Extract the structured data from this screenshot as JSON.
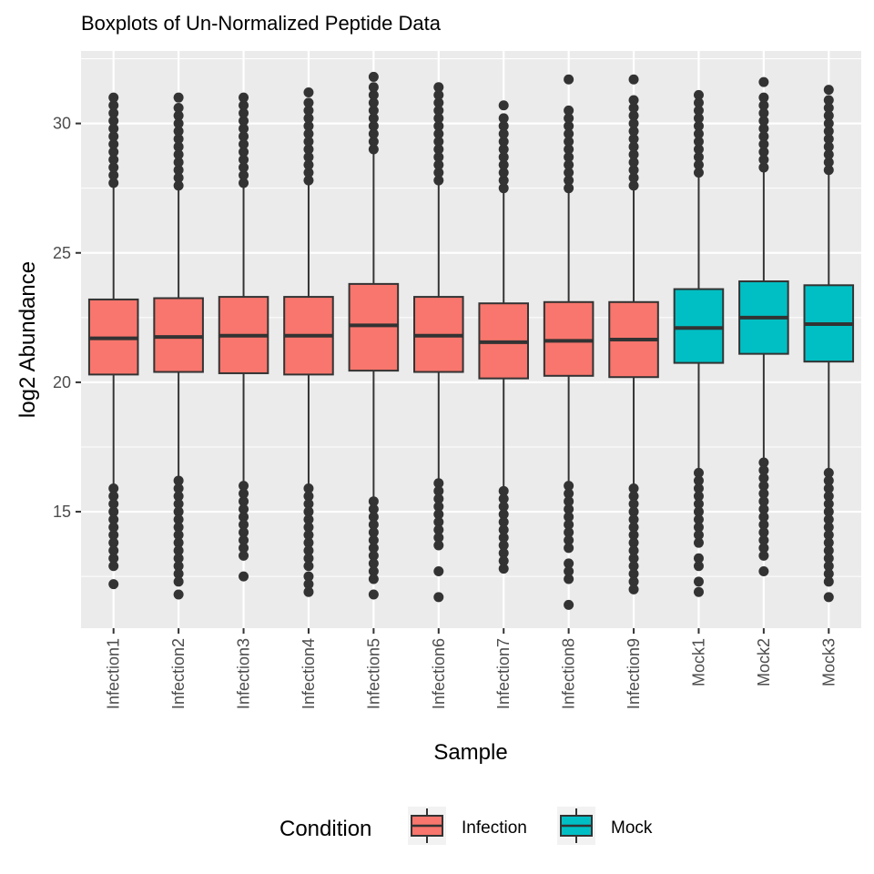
{
  "chart_data": {
    "type": "box",
    "title": "Boxplots of Un-Normalized Peptide Data",
    "xlabel": "Sample",
    "ylabel": "log2 Abundance",
    "ylim": [
      10.5,
      32.8
    ],
    "yticks": [
      15,
      20,
      25,
      30
    ],
    "grid": true,
    "legend": {
      "title": "Condition",
      "position": "bottom",
      "entries": [
        {
          "label": "Infection",
          "color": "#F8766D"
        },
        {
          "label": "Mock",
          "color": "#00BFC4"
        }
      ]
    },
    "colors": {
      "Infection": "#F8766D",
      "Mock": "#00BFC4",
      "panel": "#EBEBEB",
      "grid": "#FFFFFF",
      "outline": "#333333"
    },
    "categories": [
      "Infection1",
      "Infection2",
      "Infection3",
      "Infection4",
      "Infection5",
      "Infection6",
      "Infection7",
      "Infection8",
      "Infection9",
      "Mock1",
      "Mock2",
      "Mock3"
    ],
    "series": [
      {
        "sample": "Infection1",
        "condition": "Infection",
        "min": 15.9,
        "q1": 20.3,
        "median": 21.7,
        "q3": 23.2,
        "max": 27.6,
        "outliers_low": [
          15.9,
          15.6,
          15.3,
          15.0,
          14.7,
          14.4,
          14.1,
          13.8,
          13.5,
          13.2,
          12.9,
          12.2
        ],
        "outliers_high": [
          27.7,
          28.0,
          28.3,
          28.6,
          28.9,
          29.2,
          29.5,
          29.8,
          30.1,
          30.4,
          30.7,
          31.0
        ]
      },
      {
        "sample": "Infection2",
        "condition": "Infection",
        "min": 16.2,
        "q1": 20.4,
        "median": 21.75,
        "q3": 23.25,
        "max": 27.5,
        "outliers_low": [
          16.2,
          15.9,
          15.6,
          15.3,
          15.0,
          14.7,
          14.4,
          14.1,
          13.8,
          13.5,
          13.2,
          12.9,
          12.6,
          12.3,
          11.8
        ],
        "outliers_high": [
          27.6,
          27.9,
          28.2,
          28.5,
          28.8,
          29.1,
          29.4,
          29.7,
          30.0,
          30.3,
          30.6,
          31.0
        ]
      },
      {
        "sample": "Infection3",
        "condition": "Infection",
        "min": 16.0,
        "q1": 20.35,
        "median": 21.8,
        "q3": 23.3,
        "max": 27.6,
        "outliers_low": [
          16.0,
          15.7,
          15.4,
          15.1,
          14.8,
          14.5,
          14.2,
          13.9,
          13.6,
          13.3,
          12.5
        ],
        "outliers_high": [
          27.7,
          28.0,
          28.3,
          28.6,
          28.9,
          29.2,
          29.5,
          29.8,
          30.1,
          30.4,
          30.7,
          31.0
        ]
      },
      {
        "sample": "Infection4",
        "condition": "Infection",
        "min": 15.9,
        "q1": 20.3,
        "median": 21.8,
        "q3": 23.3,
        "max": 27.8,
        "outliers_low": [
          15.9,
          15.6,
          15.3,
          15.0,
          14.7,
          14.4,
          14.1,
          13.8,
          13.5,
          13.2,
          12.9,
          12.5,
          12.2,
          11.9
        ],
        "outliers_high": [
          27.8,
          28.1,
          28.4,
          28.7,
          29.0,
          29.3,
          29.6,
          29.9,
          30.2,
          30.5,
          30.8,
          31.2
        ]
      },
      {
        "sample": "Infection5",
        "condition": "Infection",
        "min": 15.4,
        "q1": 20.45,
        "median": 22.2,
        "q3": 23.8,
        "max": 28.9,
        "outliers_low": [
          15.4,
          15.1,
          14.8,
          14.5,
          14.2,
          13.9,
          13.6,
          13.3,
          13.0,
          12.7,
          12.4,
          11.8
        ],
        "outliers_high": [
          29.0,
          29.3,
          29.6,
          29.9,
          30.2,
          30.5,
          30.8,
          31.1,
          31.4,
          31.8
        ]
      },
      {
        "sample": "Infection6",
        "condition": "Infection",
        "min": 16.1,
        "q1": 20.4,
        "median": 21.8,
        "q3": 23.3,
        "max": 27.7,
        "outliers_low": [
          16.1,
          15.8,
          15.5,
          15.2,
          14.9,
          14.6,
          14.3,
          14.0,
          13.7,
          12.7,
          11.7
        ],
        "outliers_high": [
          27.8,
          28.1,
          28.4,
          28.7,
          29.0,
          29.3,
          29.6,
          29.9,
          30.2,
          30.5,
          30.8,
          31.1,
          31.4
        ]
      },
      {
        "sample": "Infection7",
        "condition": "Infection",
        "min": 15.8,
        "q1": 20.15,
        "median": 21.55,
        "q3": 23.05,
        "max": 27.4,
        "outliers_low": [
          15.8,
          15.5,
          15.2,
          14.9,
          14.6,
          14.3,
          14.0,
          13.7,
          13.4,
          13.1,
          12.8
        ],
        "outliers_high": [
          27.5,
          27.8,
          28.1,
          28.4,
          28.7,
          29.0,
          29.3,
          29.6,
          29.9,
          30.2,
          30.7
        ]
      },
      {
        "sample": "Infection8",
        "condition": "Infection",
        "min": 16.0,
        "q1": 20.25,
        "median": 21.6,
        "q3": 23.1,
        "max": 27.4,
        "outliers_low": [
          16.0,
          15.7,
          15.4,
          15.1,
          14.8,
          14.5,
          14.2,
          13.9,
          13.6,
          13.0,
          12.7,
          12.4,
          11.4
        ],
        "outliers_high": [
          27.5,
          27.8,
          28.1,
          28.4,
          28.7,
          29.0,
          29.3,
          29.6,
          29.9,
          30.2,
          30.5,
          31.7
        ]
      },
      {
        "sample": "Infection9",
        "condition": "Infection",
        "min": 15.9,
        "q1": 20.2,
        "median": 21.65,
        "q3": 23.1,
        "max": 27.5,
        "outliers_low": [
          15.9,
          15.6,
          15.3,
          15.0,
          14.7,
          14.4,
          14.1,
          13.8,
          13.5,
          13.2,
          12.9,
          12.6,
          12.3,
          12.0
        ],
        "outliers_high": [
          27.6,
          27.9,
          28.2,
          28.5,
          28.8,
          29.1,
          29.4,
          29.7,
          30.0,
          30.3,
          30.6,
          30.9,
          31.7
        ]
      },
      {
        "sample": "Mock1",
        "condition": "Mock",
        "min": 16.5,
        "q1": 20.75,
        "median": 22.1,
        "q3": 23.6,
        "max": 28.0,
        "outliers_low": [
          16.5,
          16.2,
          15.9,
          15.6,
          15.3,
          15.0,
          14.7,
          14.4,
          14.1,
          13.8,
          13.2,
          12.9,
          12.3,
          11.9
        ],
        "outliers_high": [
          28.1,
          28.4,
          28.7,
          29.0,
          29.3,
          29.6,
          29.9,
          30.2,
          30.5,
          30.8,
          31.1
        ]
      },
      {
        "sample": "Mock2",
        "condition": "Mock",
        "min": 16.9,
        "q1": 21.1,
        "median": 22.5,
        "q3": 23.9,
        "max": 28.2,
        "outliers_low": [
          16.9,
          16.6,
          16.3,
          16.0,
          15.7,
          15.4,
          15.1,
          14.8,
          14.5,
          14.2,
          13.9,
          13.6,
          13.3,
          12.7
        ],
        "outliers_high": [
          28.3,
          28.6,
          28.9,
          29.2,
          29.5,
          29.8,
          30.1,
          30.4,
          30.7,
          31.0,
          31.6
        ]
      },
      {
        "sample": "Mock3",
        "condition": "Mock",
        "min": 16.5,
        "q1": 20.8,
        "median": 22.25,
        "q3": 23.75,
        "max": 28.1,
        "outliers_low": [
          16.5,
          16.2,
          15.9,
          15.6,
          15.3,
          15.0,
          14.7,
          14.4,
          14.1,
          13.8,
          13.5,
          13.2,
          12.9,
          12.6,
          12.3,
          11.7
        ],
        "outliers_high": [
          28.2,
          28.5,
          28.8,
          29.1,
          29.4,
          29.7,
          30.0,
          30.3,
          30.6,
          30.9,
          31.3
        ]
      }
    ]
  }
}
